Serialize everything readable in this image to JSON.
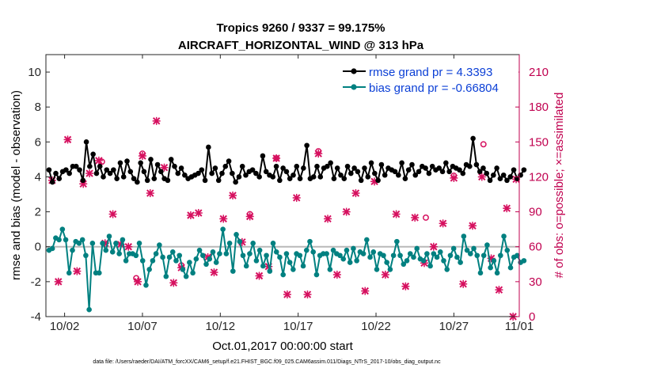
{
  "chart_data": {
    "type": "line",
    "title": "Tropics 9260 / 9337 = 99.175%",
    "subtitle": "AIRCRAFT_HORIZONTAL_WIND @ 313 hPa",
    "xlabel": "Oct.01,2017 00:00:00 start",
    "ylabel": "rmse and bias (model - observation)",
    "ylabel_right": "# of obs: o=possible; ×=assimilated",
    "footnote": "data file: /Users/raeder/DAI/ATM_forcXX/CAM6_setup/f.e21.FHIST_BGC.f09_025.CAM6assim.011/Diags_NTrS_2017-10/obs_diag_output.nc",
    "xlim": [
      0.8,
      31.2
    ],
    "ylim": [
      -4,
      11
    ],
    "ylim_right": [
      0,
      225
    ],
    "x_ticks": [
      2,
      7,
      12,
      17,
      22,
      27,
      32
    ],
    "x_tick_labels": [
      "10/02",
      "10/07",
      "10/12",
      "10/17",
      "10/22",
      "10/27",
      "11/01"
    ],
    "y_ticks": [
      -4,
      -2,
      0,
      2,
      4,
      6,
      8,
      10
    ],
    "y_tick_labels": [
      "-4",
      "-2",
      "0",
      "2",
      "4",
      "6",
      "8",
      "10"
    ],
    "y_right_ticks": [
      0,
      30,
      60,
      90,
      120,
      150,
      180,
      210
    ],
    "y_right_tick_labels": [
      "0",
      "30",
      "60",
      "90",
      "120",
      "150",
      "180",
      "210"
    ],
    "zero_line": 0,
    "legend_position": "top-right",
    "series": [
      {
        "name": "rmse grand pr = 4.3393",
        "color": "#000000",
        "marker": "dot",
        "values": [
          4.4,
          3.7,
          4.2,
          3.9,
          4.3,
          4.4,
          4.2,
          4.6,
          4.6,
          4.4,
          3.8,
          6.0,
          4.6,
          5.3,
          4.2,
          4.6,
          4.0,
          4.4,
          4.2,
          4.4,
          3.9,
          4.8,
          4.0,
          4.9,
          4.3,
          3.9,
          3.7,
          4.8,
          4.3,
          3.8,
          5.0,
          3.9,
          4.7,
          4.3,
          3.9,
          3.8,
          5.0,
          4.6,
          4.2,
          4.5,
          4.1,
          3.9,
          4.0,
          4.1,
          4.2,
          4.4,
          3.8,
          5.7,
          4.2,
          4.5,
          3.8,
          4.2,
          4.6,
          4.9,
          4.2,
          3.7,
          4.0,
          4.6,
          4.1,
          4.3,
          4.4,
          4.2,
          4.0,
          5.2,
          4.3,
          4.1,
          4.0,
          4.6,
          3.8,
          4.5,
          4.3,
          3.9,
          4.1,
          4.6,
          3.9,
          4.5,
          5.8,
          3.9,
          4.0,
          4.6,
          4.0,
          4.5,
          4.6,
          4.8,
          3.9,
          4.5,
          4.1,
          3.9,
          4.6,
          4.2,
          4.5,
          4.3,
          3.8,
          4.5,
          4.0,
          4.8,
          4.2,
          3.8,
          4.7,
          4.1,
          4.5,
          4.4,
          4.3,
          4.1,
          4.8,
          3.9,
          4.4,
          4.7,
          4.1,
          4.3,
          4.6,
          4.5,
          4.2,
          4.6,
          4.4,
          4.5,
          4.3,
          4.8,
          4.3,
          4.6,
          4.5,
          4.4,
          4.2,
          4.7,
          4.6,
          6.2,
          4.7,
          4.3,
          4.5,
          4.2,
          3.8,
          4.1,
          4.5,
          3.9,
          4.1,
          3.8,
          4.0,
          4.4,
          3.9,
          4.1,
          4.4
        ]
      },
      {
        "name": "bias grand pr = -0.66804",
        "color": "#008080",
        "marker": "dot",
        "values": [
          -0.2,
          -0.1,
          0.5,
          0.4,
          1.0,
          0.4,
          -1.5,
          -0.2,
          0.3,
          0.2,
          0.4,
          -0.5,
          -3.6,
          0.2,
          -1.5,
          -1.5,
          0.2,
          -0.2,
          0.6,
          -0.3,
          0.2,
          -0.4,
          0.4,
          -0.8,
          -0.4,
          -0.4,
          -0.5,
          0.2,
          -0.8,
          -2.2,
          -1.3,
          -0.8,
          -0.4,
          0.1,
          -0.6,
          -1.7,
          -0.6,
          -0.3,
          -0.8,
          -0.5,
          -1.3,
          -1.7,
          -0.9,
          -1.5,
          -0.7,
          -0.2,
          -0.5,
          -1.0,
          -0.7,
          -0.3,
          -0.9,
          -0.4,
          1.0,
          -0.4,
          0.2,
          -1.4,
          0.7,
          0.3,
          -0.5,
          -1.1,
          -0.4,
          0.2,
          -0.8,
          -0.2,
          -1.1,
          -0.5,
          -1.4,
          0.2,
          -0.3,
          -0.6,
          -1.6,
          -0.4,
          -0.9,
          -1.3,
          -0.4,
          -0.5,
          -1.1,
          -0.2,
          0.3,
          -0.3,
          -1.6,
          -0.5,
          -0.4,
          -0.4,
          -1.3,
          -0.2,
          -0.4,
          -0.5,
          -0.7,
          -0.2,
          -0.9,
          -0.1,
          -0.8,
          -0.3,
          -0.4,
          0.4,
          -0.6,
          -0.3,
          -1.3,
          -0.4,
          -0.5,
          -0.9,
          -1.3,
          -0.5,
          0.3,
          -0.5,
          -1.0,
          -0.8,
          -0.4,
          -0.6,
          -0.1,
          -0.7,
          -0.8,
          -0.4,
          -1.1,
          -0.4,
          -0.6,
          -0.3,
          -0.8,
          -1.3,
          -0.5,
          -0.1,
          -0.6,
          -0.9,
          0.6,
          -0.2,
          -0.4,
          -0.1,
          -0.5,
          -1.5,
          -0.5,
          0.1,
          -1.2,
          -0.8,
          -1.5,
          -0.5,
          0.6,
          -0.2,
          -1.2,
          -0.6,
          -0.5,
          -0.9,
          -0.8
        ]
      }
    ],
    "obs_counts": {
      "color": "#d6105f",
      "assimilated": [
        {
          "x": 1.2,
          "y": 117
        },
        {
          "x": 1.6,
          "y": 30
        },
        {
          "x": 2.2,
          "y": 152
        },
        {
          "x": 2.8,
          "y": 39
        },
        {
          "x": 3.2,
          "y": 114
        },
        {
          "x": 3.6,
          "y": 123
        },
        {
          "x": 4.2,
          "y": 134
        },
        {
          "x": 4.6,
          "y": 63
        },
        {
          "x": 5.1,
          "y": 88
        },
        {
          "x": 5.6,
          "y": 62
        },
        {
          "x": 6.1,
          "y": 60
        },
        {
          "x": 6.7,
          "y": 30
        },
        {
          "x": 7.0,
          "y": 138
        },
        {
          "x": 7.5,
          "y": 106
        },
        {
          "x": 7.9,
          "y": 168
        },
        {
          "x": 8.4,
          "y": 128
        },
        {
          "x": 9.0,
          "y": 29
        },
        {
          "x": 9.5,
          "y": 42
        },
        {
          "x": 10.1,
          "y": 87
        },
        {
          "x": 10.6,
          "y": 89
        },
        {
          "x": 11.2,
          "y": 51
        },
        {
          "x": 11.6,
          "y": 38
        },
        {
          "x": 12.2,
          "y": 84
        },
        {
          "x": 12.8,
          "y": 104
        },
        {
          "x": 13.4,
          "y": 64
        },
        {
          "x": 13.9,
          "y": 86
        },
        {
          "x": 14.5,
          "y": 35
        },
        {
          "x": 15.1,
          "y": 43
        },
        {
          "x": 15.6,
          "y": 136
        },
        {
          "x": 16.3,
          "y": 19
        },
        {
          "x": 16.9,
          "y": 102
        },
        {
          "x": 17.6,
          "y": 19
        },
        {
          "x": 18.3,
          "y": 140
        },
        {
          "x": 18.9,
          "y": 84
        },
        {
          "x": 19.5,
          "y": 36
        },
        {
          "x": 20.1,
          "y": 90
        },
        {
          "x": 20.7,
          "y": 106
        },
        {
          "x": 21.3,
          "y": 22
        },
        {
          "x": 21.9,
          "y": 116
        },
        {
          "x": 22.6,
          "y": 36
        },
        {
          "x": 23.3,
          "y": 88
        },
        {
          "x": 23.9,
          "y": 26
        },
        {
          "x": 24.5,
          "y": 85
        },
        {
          "x": 25.1,
          "y": 46
        },
        {
          "x": 25.7,
          "y": 60
        },
        {
          "x": 26.3,
          "y": 80
        },
        {
          "x": 27.0,
          "y": 119
        },
        {
          "x": 27.6,
          "y": 28
        },
        {
          "x": 28.2,
          "y": 78
        },
        {
          "x": 28.8,
          "y": 120
        },
        {
          "x": 29.4,
          "y": 50
        },
        {
          "x": 29.9,
          "y": 23
        },
        {
          "x": 30.4,
          "y": 93
        },
        {
          "x": 30.8,
          "y": 0
        },
        {
          "x": 31.0,
          "y": 118
        }
      ],
      "possible": [
        {
          "x": 7.0,
          "y": 140
        },
        {
          "x": 15.6,
          "y": 136
        },
        {
          "x": 18.3,
          "y": 142
        },
        {
          "x": 27.0,
          "y": 121
        },
        {
          "x": 28.9,
          "y": 148
        },
        {
          "x": 4.4,
          "y": 133
        },
        {
          "x": 25.2,
          "y": 85
        },
        {
          "x": 9.5,
          "y": 44
        },
        {
          "x": 13.9,
          "y": 88
        },
        {
          "x": 6.6,
          "y": 33
        }
      ]
    }
  }
}
